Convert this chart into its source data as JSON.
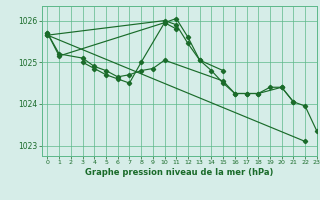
{
  "title": "Graphe pression niveau de la mer (hPa)",
  "background_color": "#d6ede8",
  "grid_color": "#5cb88a",
  "line_color": "#1a6b2a",
  "ylim": [
    1022.75,
    1026.35
  ],
  "xlim": [
    -0.5,
    23
  ],
  "yticks": [
    1023,
    1024,
    1025,
    1026
  ],
  "xticks": [
    0,
    1,
    2,
    3,
    4,
    5,
    6,
    7,
    8,
    9,
    10,
    11,
    12,
    13,
    14,
    15,
    16,
    17,
    18,
    19,
    20,
    21,
    22,
    23
  ],
  "line1_x": [
    0,
    1,
    3,
    4,
    5,
    6,
    7,
    8,
    9,
    10,
    15,
    16,
    17,
    18,
    20,
    21
  ],
  "line1_y": [
    1025.7,
    1025.2,
    1025.1,
    1024.9,
    1024.8,
    1024.65,
    1024.7,
    1024.8,
    1024.85,
    1025.05,
    1024.55,
    1024.25,
    1024.25,
    1024.25,
    1024.4,
    1024.05
  ],
  "line2_x": [
    3,
    4,
    5,
    6,
    7,
    8,
    10,
    11
  ],
  "line2_y": [
    1025.0,
    1024.85,
    1024.7,
    1024.6,
    1024.5,
    1025.0,
    1025.95,
    1025.8
  ],
  "line3_x": [
    0,
    1,
    10,
    11,
    12,
    13,
    15
  ],
  "line3_y": [
    1025.7,
    1025.15,
    1025.95,
    1026.05,
    1025.6,
    1025.05,
    1024.8
  ],
  "line4_x": [
    0,
    22
  ],
  "line4_y": [
    1025.65,
    1023.1
  ],
  "line5_x": [
    0,
    10,
    11,
    12,
    13,
    14,
    15,
    16,
    17,
    18,
    19,
    20,
    21,
    22,
    23
  ],
  "line5_y": [
    1025.65,
    1026.0,
    1025.9,
    1025.45,
    1025.05,
    1024.8,
    1024.5,
    1024.25,
    1024.25,
    1024.25,
    1024.4,
    1024.4,
    1024.05,
    1023.95,
    1023.35
  ]
}
